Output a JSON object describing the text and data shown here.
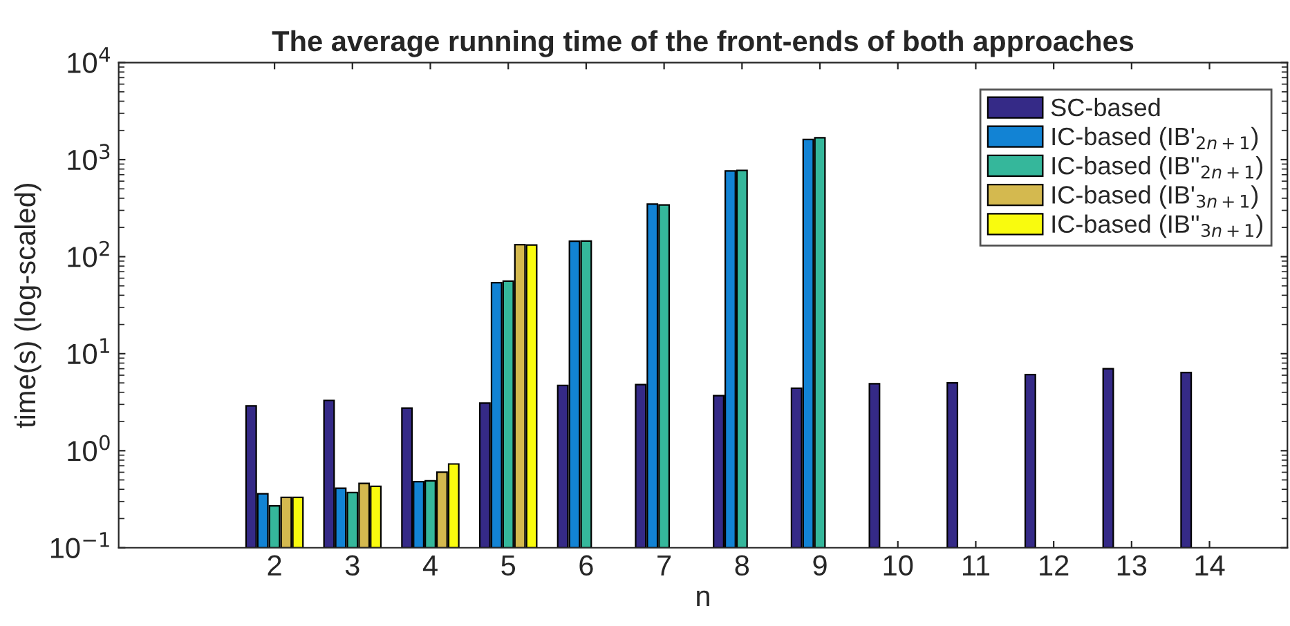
{
  "chart_data": {
    "type": "bar",
    "title": "The average running time of the front-ends of both approaches",
    "xlabel": "n",
    "ylabel": "time(s) (log-scaled)",
    "x": [
      2,
      3,
      4,
      5,
      6,
      7,
      8,
      9,
      10,
      11,
      12,
      13,
      14
    ],
    "series": [
      {
        "name": "SC-based",
        "color": "#352a87",
        "values": [
          2.9,
          3.3,
          2.75,
          3.1,
          4.7,
          4.8,
          3.7,
          4.4,
          4.9,
          5.0,
          6.1,
          7.0,
          6.4
        ]
      },
      {
        "name": "IC-based (IB'$_{2n+1}$)",
        "color": "#1283d4",
        "values": [
          0.36,
          0.41,
          0.48,
          54,
          144,
          348,
          766,
          1610,
          null,
          null,
          null,
          null,
          null
        ]
      },
      {
        "name": "IC-based (IB''$_{2n+1}$)",
        "color": "#35b79b",
        "values": [
          0.27,
          0.37,
          0.49,
          56,
          145,
          341,
          774,
          1683,
          null,
          null,
          null,
          null,
          null
        ]
      },
      {
        "name": "IC-based (IB'$_{3n+1}$)",
        "color": "#d4b94f",
        "values": [
          0.33,
          0.46,
          0.6,
          133,
          null,
          null,
          null,
          null,
          null,
          null,
          null,
          null,
          null
        ]
      },
      {
        "name": "IC-based (IB''$_{3n+1}$)",
        "color": "#f9fb0e",
        "values": [
          0.33,
          0.43,
          0.73,
          132,
          null,
          null,
          null,
          null,
          null,
          null,
          null,
          null,
          null
        ]
      }
    ],
    "log": "y",
    "xlim": [
      0,
      15
    ],
    "xticks": [
      2,
      3,
      4,
      5,
      6,
      7,
      8,
      9,
      10,
      11,
      12,
      13,
      14
    ],
    "ylim": [
      0.1,
      10000
    ],
    "yticks": [
      {
        "value": 0.1,
        "label": "10$^{−1}$"
      },
      {
        "value": 1,
        "label": "10$^{0}$"
      },
      {
        "value": 10,
        "label": "10$^{1}$"
      },
      {
        "value": 100,
        "label": "10$^{2}$"
      },
      {
        "value": 1000,
        "label": "10$^{3}$"
      },
      {
        "value": 10000,
        "label": "10$^{4}$"
      }
    ],
    "legend": "top right",
    "grid": false
  }
}
